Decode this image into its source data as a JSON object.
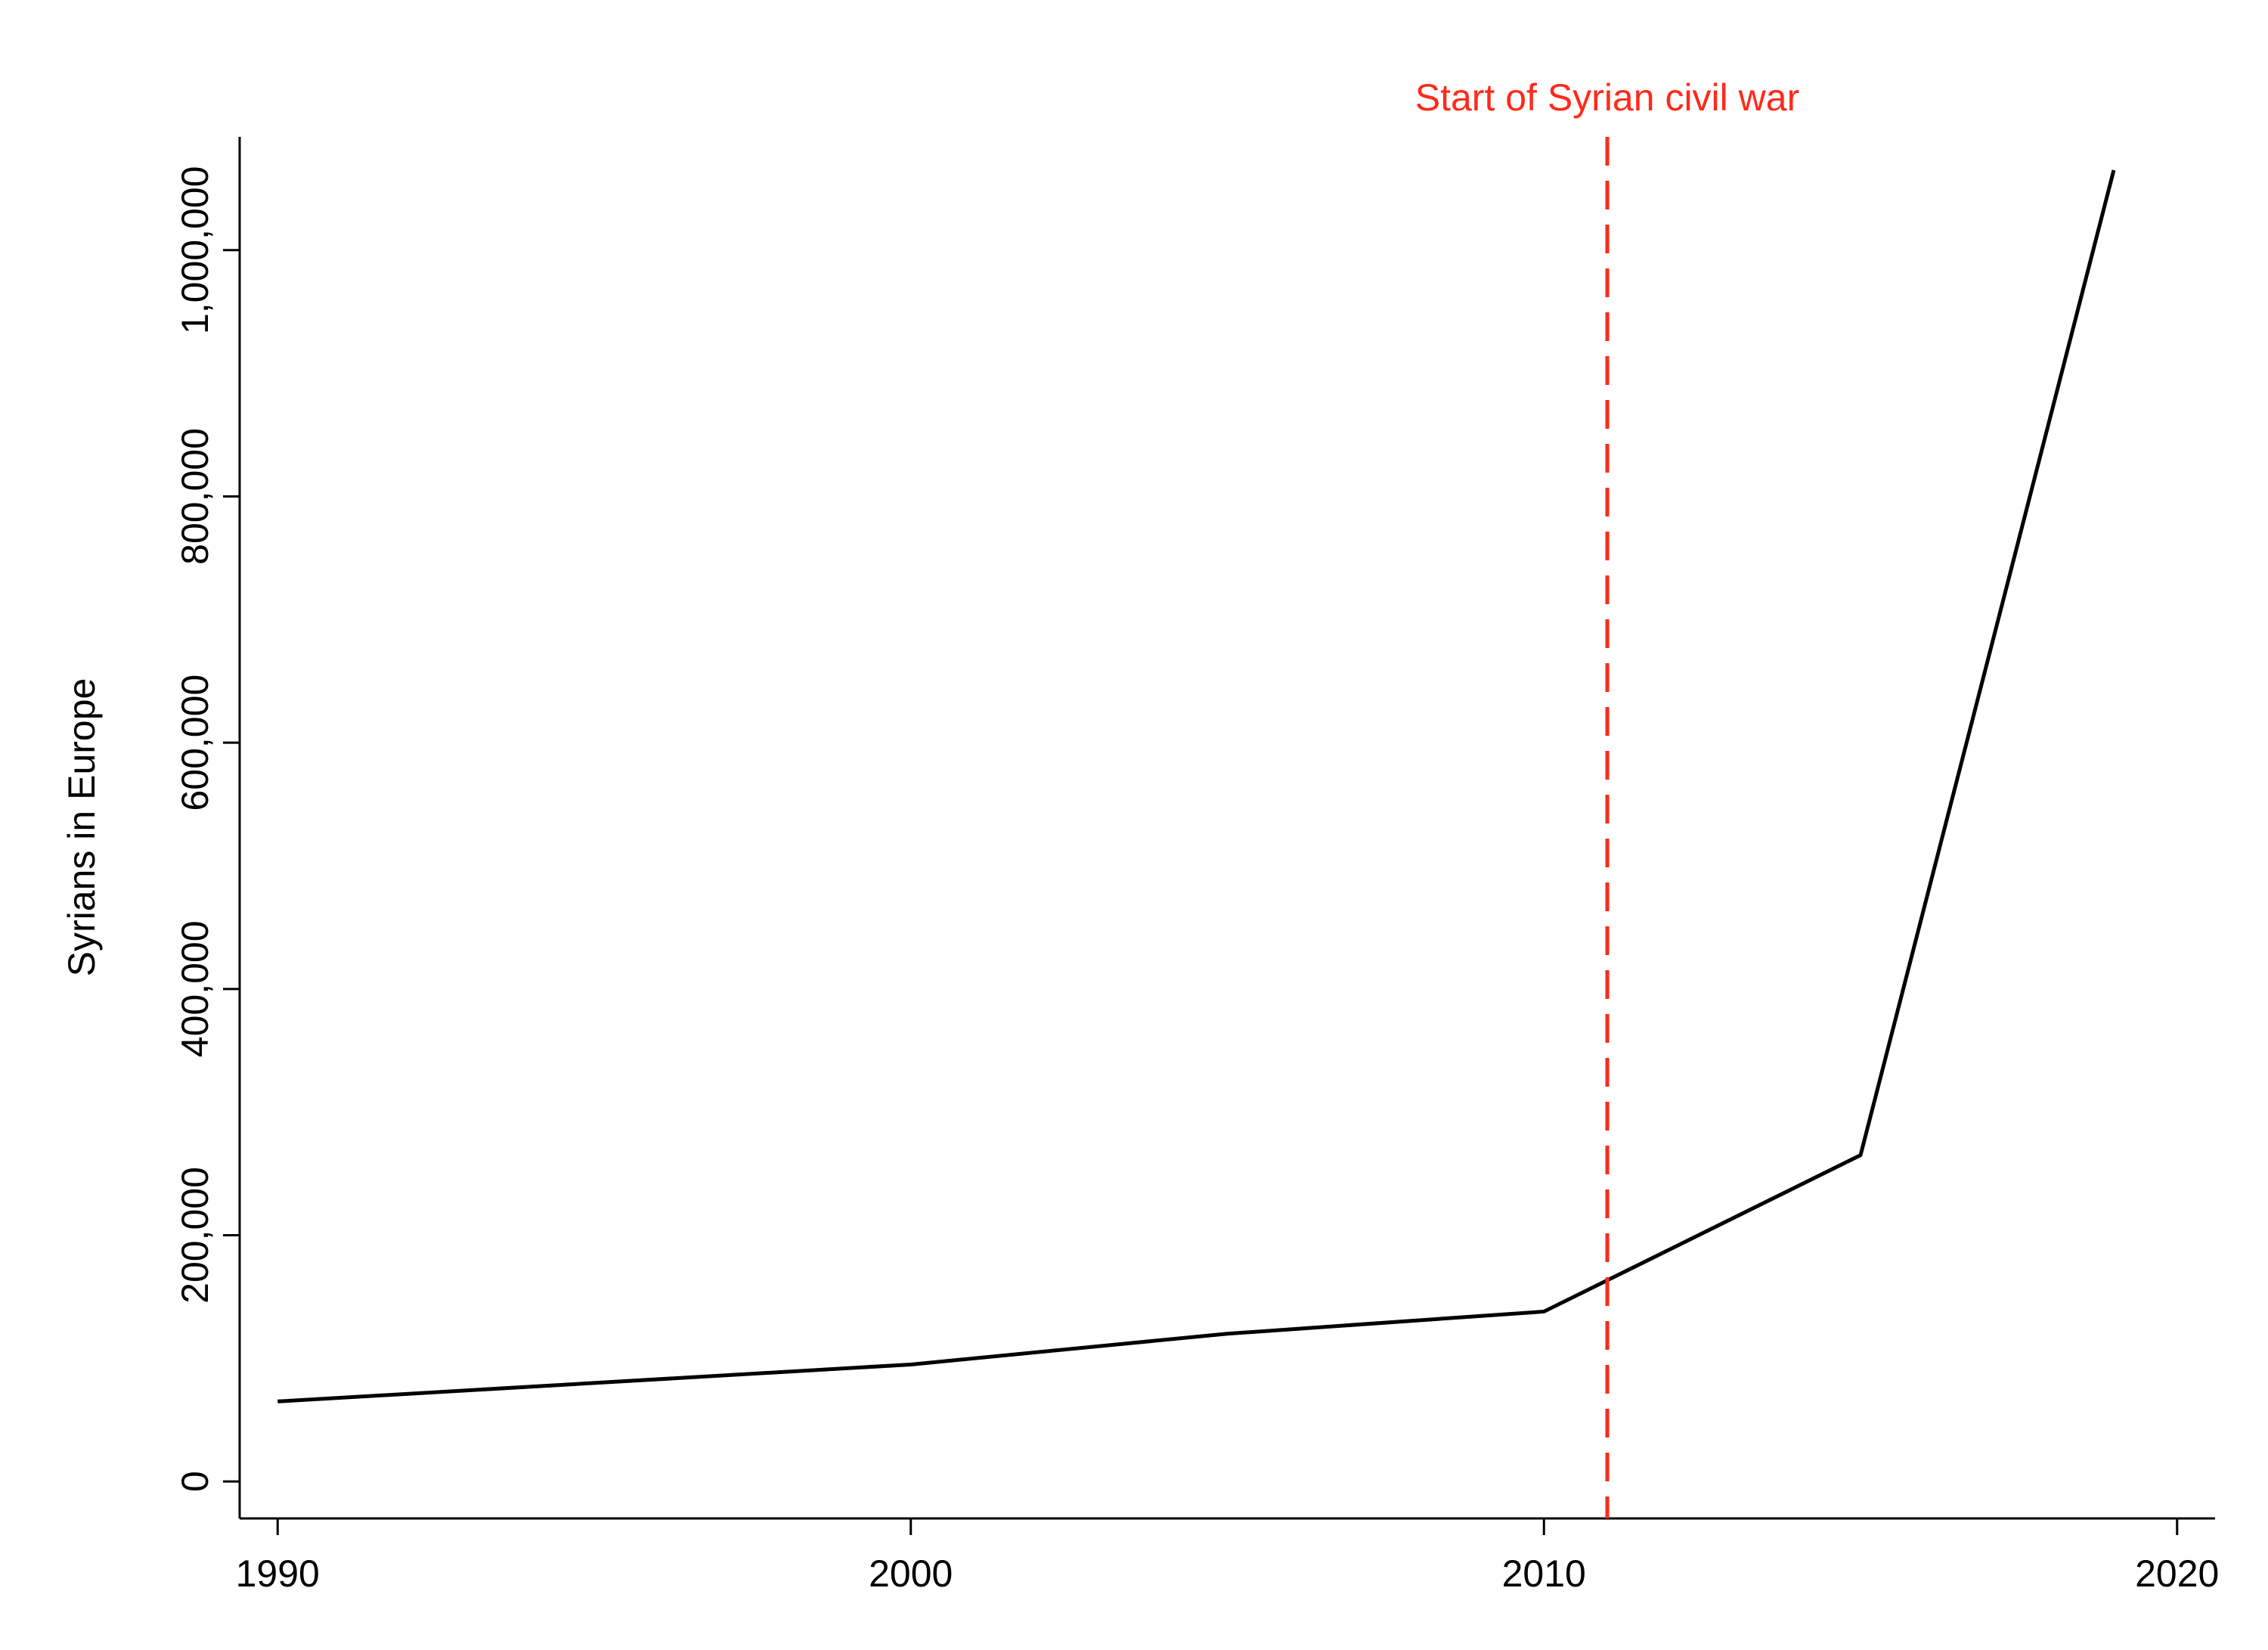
{
  "chart_data": {
    "type": "line",
    "y_label": "Syrians in Europe",
    "x": [
      1990,
      2000,
      2005,
      2010,
      2015,
      2019
    ],
    "series": [
      {
        "color": "#000000",
        "values": [
          65000,
          95000,
          120000,
          138000,
          265000,
          1065000
        ]
      }
    ],
    "xlim": [
      1989.4,
      2020.6
    ],
    "ylim": [
      -30000,
      1092000
    ],
    "xticks": [
      1990,
      2000,
      2010,
      2020
    ],
    "yticks": [
      0,
      {
        "value": 200000,
        "label": "200,000"
      },
      {
        "value": 400000,
        "label": "400,000"
      },
      {
        "value": 600000,
        "label": "600,000"
      },
      {
        "value": 800000,
        "label": "800,000"
      },
      {
        "value": 1000000,
        "label": "1,000,000"
      }
    ],
    "grid": false,
    "annotations": [
      {
        "text": "Start of Syrian civil war",
        "x": 2011,
        "color": "#ff2a1a"
      }
    ]
  }
}
